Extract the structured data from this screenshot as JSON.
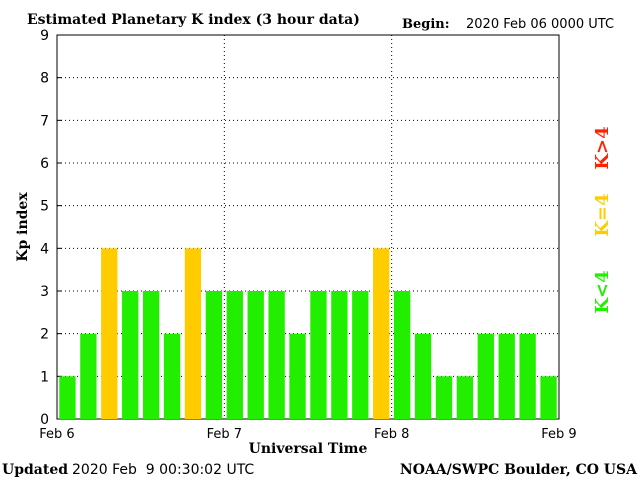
{
  "header": {
    "title": "Estimated Planetary K index (3 hour data)",
    "begin_label": "Begin:",
    "begin_value": "2020 Feb 06 0000 UTC"
  },
  "footer": {
    "updated_label": "Updated",
    "updated_value": "2020 Feb  9 00:30:02 UTC",
    "source": "NOAA/SWPC Boulder, CO USA"
  },
  "legend": {
    "low": "K<4",
    "mid": "K=4",
    "high": "K>4"
  },
  "colors": {
    "low": "#22ee00",
    "mid": "#ffcc00",
    "high": "#ff2200",
    "grid": "#000000",
    "text": "#000000"
  },
  "chart_data": {
    "type": "bar",
    "title": "Estimated Planetary K index (3 hour data)",
    "xlabel": "Universal Time",
    "ylabel": "Kp index",
    "ylim": [
      0,
      9
    ],
    "yticks": [
      "0",
      "1",
      "2",
      "3",
      "4",
      "5",
      "6",
      "7",
      "8",
      "9"
    ],
    "xticks": [
      "Feb 6",
      "Feb 7",
      "Feb 8",
      "Feb 9"
    ],
    "interval_hours": 3,
    "values": [
      1,
      2,
      4,
      3,
      3,
      2,
      4,
      3,
      3,
      3,
      3,
      2,
      3,
      3,
      3,
      4,
      3,
      2,
      1,
      1,
      2,
      2,
      2,
      1
    ],
    "grid": "dotted"
  }
}
